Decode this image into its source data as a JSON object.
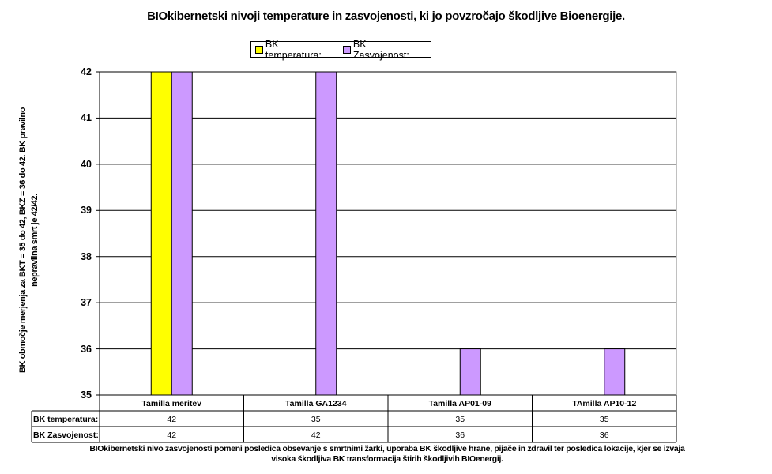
{
  "chart_data": {
    "type": "bar",
    "title": "BIOkibernetski nivoji temperature in zasvojenosti, ki jo povzročajo škodljive Bioenergije.",
    "ylabel": "BK območje merjenja za BKT = 35 do 42, BKZ = 36 do 42. BK pravilno nepravilna smrt je 42/42.",
    "xlabel": "BIOkibernetski nivo zasvojenosti pomeni posledica obsevanje s smrtnimi žarki, uporaba BK škodljive hrane, pijače in zdravil ter posledica lokacije, kjer se izvaja visoka škodljiva BK transformacija štirih škodljivih BIOenergij.",
    "categories": [
      "Tamilla meritev",
      "Tamilla GA1234",
      "Tamilla AP01-09",
      "TAmilla AP10-12"
    ],
    "series": [
      {
        "name": "BK temperatura:",
        "values": [
          42,
          35,
          35,
          35
        ],
        "color": "#ffff00"
      },
      {
        "name": "BK Zasvojenost:",
        "values": [
          42,
          42,
          36,
          36
        ],
        "color": "#cc99ff"
      }
    ],
    "ylim": [
      35,
      42
    ],
    "yticks": [
      35,
      36,
      37,
      38,
      39,
      40,
      41,
      42
    ],
    "grid": true,
    "legend_position": "top",
    "data_table": true,
    "table_value_labels": [
      "42",
      "35",
      "35",
      "35",
      "42",
      "42",
      "36",
      "36"
    ]
  }
}
